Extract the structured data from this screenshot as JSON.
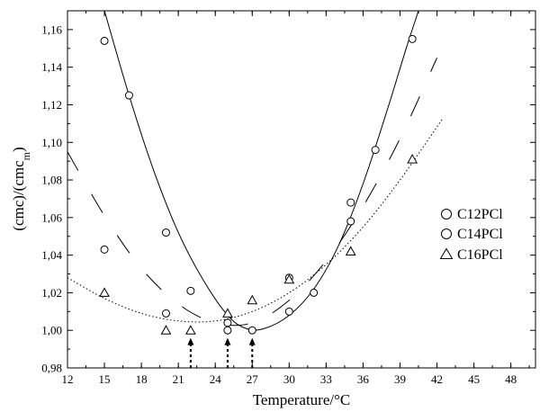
{
  "chart_data": {
    "type": "scatter",
    "xlabel": "Temperature/°C",
    "ylabel": "(cmc)/(cmc",
    "ylabel_sub": "m",
    "ylabel_close": ")",
    "xlim": [
      12,
      50
    ],
    "ylim": [
      0.98,
      1.17
    ],
    "x_ticks": [
      {
        "v": 12,
        "label": "12"
      },
      {
        "v": 15,
        "label": "15"
      },
      {
        "v": 18,
        "label": "18"
      },
      {
        "v": 21,
        "label": "21"
      },
      {
        "v": 24,
        "label": "24"
      },
      {
        "v": 27,
        "label": "27"
      },
      {
        "v": 30,
        "label": "30"
      },
      {
        "v": 33,
        "label": "33"
      },
      {
        "v": 36,
        "label": "36"
      },
      {
        "v": 39,
        "label": "39"
      },
      {
        "v": 42,
        "label": "42"
      },
      {
        "v": 45,
        "label": "45"
      },
      {
        "v": 48,
        "label": "48"
      }
    ],
    "y_ticks": [
      {
        "v": 0.98,
        "label": "0,98"
      },
      {
        "v": 1.0,
        "label": "1,00"
      },
      {
        "v": 1.02,
        "label": "1,02"
      },
      {
        "v": 1.04,
        "label": "1,04"
      },
      {
        "v": 1.06,
        "label": "1,06"
      },
      {
        "v": 1.08,
        "label": "1,08"
      },
      {
        "v": 1.1,
        "label": "1,10"
      },
      {
        "v": 1.12,
        "label": "1,12"
      },
      {
        "v": 1.14,
        "label": "1,14"
      },
      {
        "v": 1.16,
        "label": "1,16"
      }
    ],
    "series": [
      {
        "name": "C12PCl",
        "marker": "circle",
        "line": "solid",
        "points": [
          {
            "x": 15,
            "y": 1.154
          },
          {
            "x": 17,
            "y": 1.125
          },
          {
            "x": 20,
            "y": 1.052
          },
          {
            "x": 22,
            "y": 1.021
          },
          {
            "x": 25,
            "y": 1.0
          },
          {
            "x": 27,
            "y": 1.0
          },
          {
            "x": 30,
            "y": 1.01
          },
          {
            "x": 32,
            "y": 1.02
          },
          {
            "x": 35,
            "y": 1.068
          },
          {
            "x": 37,
            "y": 1.096
          },
          {
            "x": 40,
            "y": 1.155
          }
        ],
        "curve": [
          {
            "x": 15,
            "y": 1.17
          },
          {
            "x": 17,
            "y": 1.125
          },
          {
            "x": 19,
            "y": 1.085
          },
          {
            "x": 21,
            "y": 1.052
          },
          {
            "x": 23,
            "y": 1.027
          },
          {
            "x": 25,
            "y": 1.008
          },
          {
            "x": 26.5,
            "y": 1.001
          },
          {
            "x": 28,
            "y": 1.001
          },
          {
            "x": 30,
            "y": 1.008
          },
          {
            "x": 32,
            "y": 1.022
          },
          {
            "x": 34,
            "y": 1.045
          },
          {
            "x": 36,
            "y": 1.078
          },
          {
            "x": 38,
            "y": 1.118
          },
          {
            "x": 39.5,
            "y": 1.15
          },
          {
            "x": 40.5,
            "y": 1.17
          }
        ]
      },
      {
        "name": "C14PCl",
        "marker": "circle",
        "line": "dashed",
        "points": [
          {
            "x": 15,
            "y": 1.043
          },
          {
            "x": 20,
            "y": 1.009
          },
          {
            "x": 25,
            "y": 1.004
          },
          {
            "x": 30,
            "y": 1.028
          },
          {
            "x": 35,
            "y": 1.058
          }
        ],
        "curve": [
          {
            "x": 12,
            "y": 1.095
          },
          {
            "x": 15,
            "y": 1.061
          },
          {
            "x": 18,
            "y": 1.033
          },
          {
            "x": 21,
            "y": 1.014
          },
          {
            "x": 24,
            "y": 1.004
          },
          {
            "x": 27,
            "y": 1.004
          },
          {
            "x": 30,
            "y": 1.016
          },
          {
            "x": 33,
            "y": 1.037
          },
          {
            "x": 36,
            "y": 1.066
          },
          {
            "x": 39,
            "y": 1.102
          },
          {
            "x": 42,
            "y": 1.145
          }
        ]
      },
      {
        "name": "C16PCl",
        "marker": "triangle",
        "line": "dotted",
        "points": [
          {
            "x": 15,
            "y": 1.02
          },
          {
            "x": 20,
            "y": 1.0
          },
          {
            "x": 22,
            "y": 1.0
          },
          {
            "x": 25,
            "y": 1.009
          },
          {
            "x": 27,
            "y": 1.016
          },
          {
            "x": 30,
            "y": 1.027
          },
          {
            "x": 35,
            "y": 1.042
          },
          {
            "x": 40,
            "y": 1.091
          }
        ],
        "curve": [
          {
            "x": 12,
            "y": 1.028
          },
          {
            "x": 15,
            "y": 1.017
          },
          {
            "x": 18,
            "y": 1.009
          },
          {
            "x": 21,
            "y": 1.005
          },
          {
            "x": 24,
            "y": 1.005
          },
          {
            "x": 27,
            "y": 1.01
          },
          {
            "x": 30,
            "y": 1.02
          },
          {
            "x": 33,
            "y": 1.035
          },
          {
            "x": 36,
            "y": 1.055
          },
          {
            "x": 39,
            "y": 1.08
          },
          {
            "x": 42.5,
            "y": 1.113
          }
        ]
      }
    ],
    "arrows": [
      {
        "x": 22,
        "y_from": 0.98,
        "y_to": 0.996
      },
      {
        "x": 25,
        "y_from": 0.98,
        "y_to": 0.996
      },
      {
        "x": 27,
        "y_from": 0.98,
        "y_to": 0.996
      }
    ],
    "legend_position": "right"
  }
}
